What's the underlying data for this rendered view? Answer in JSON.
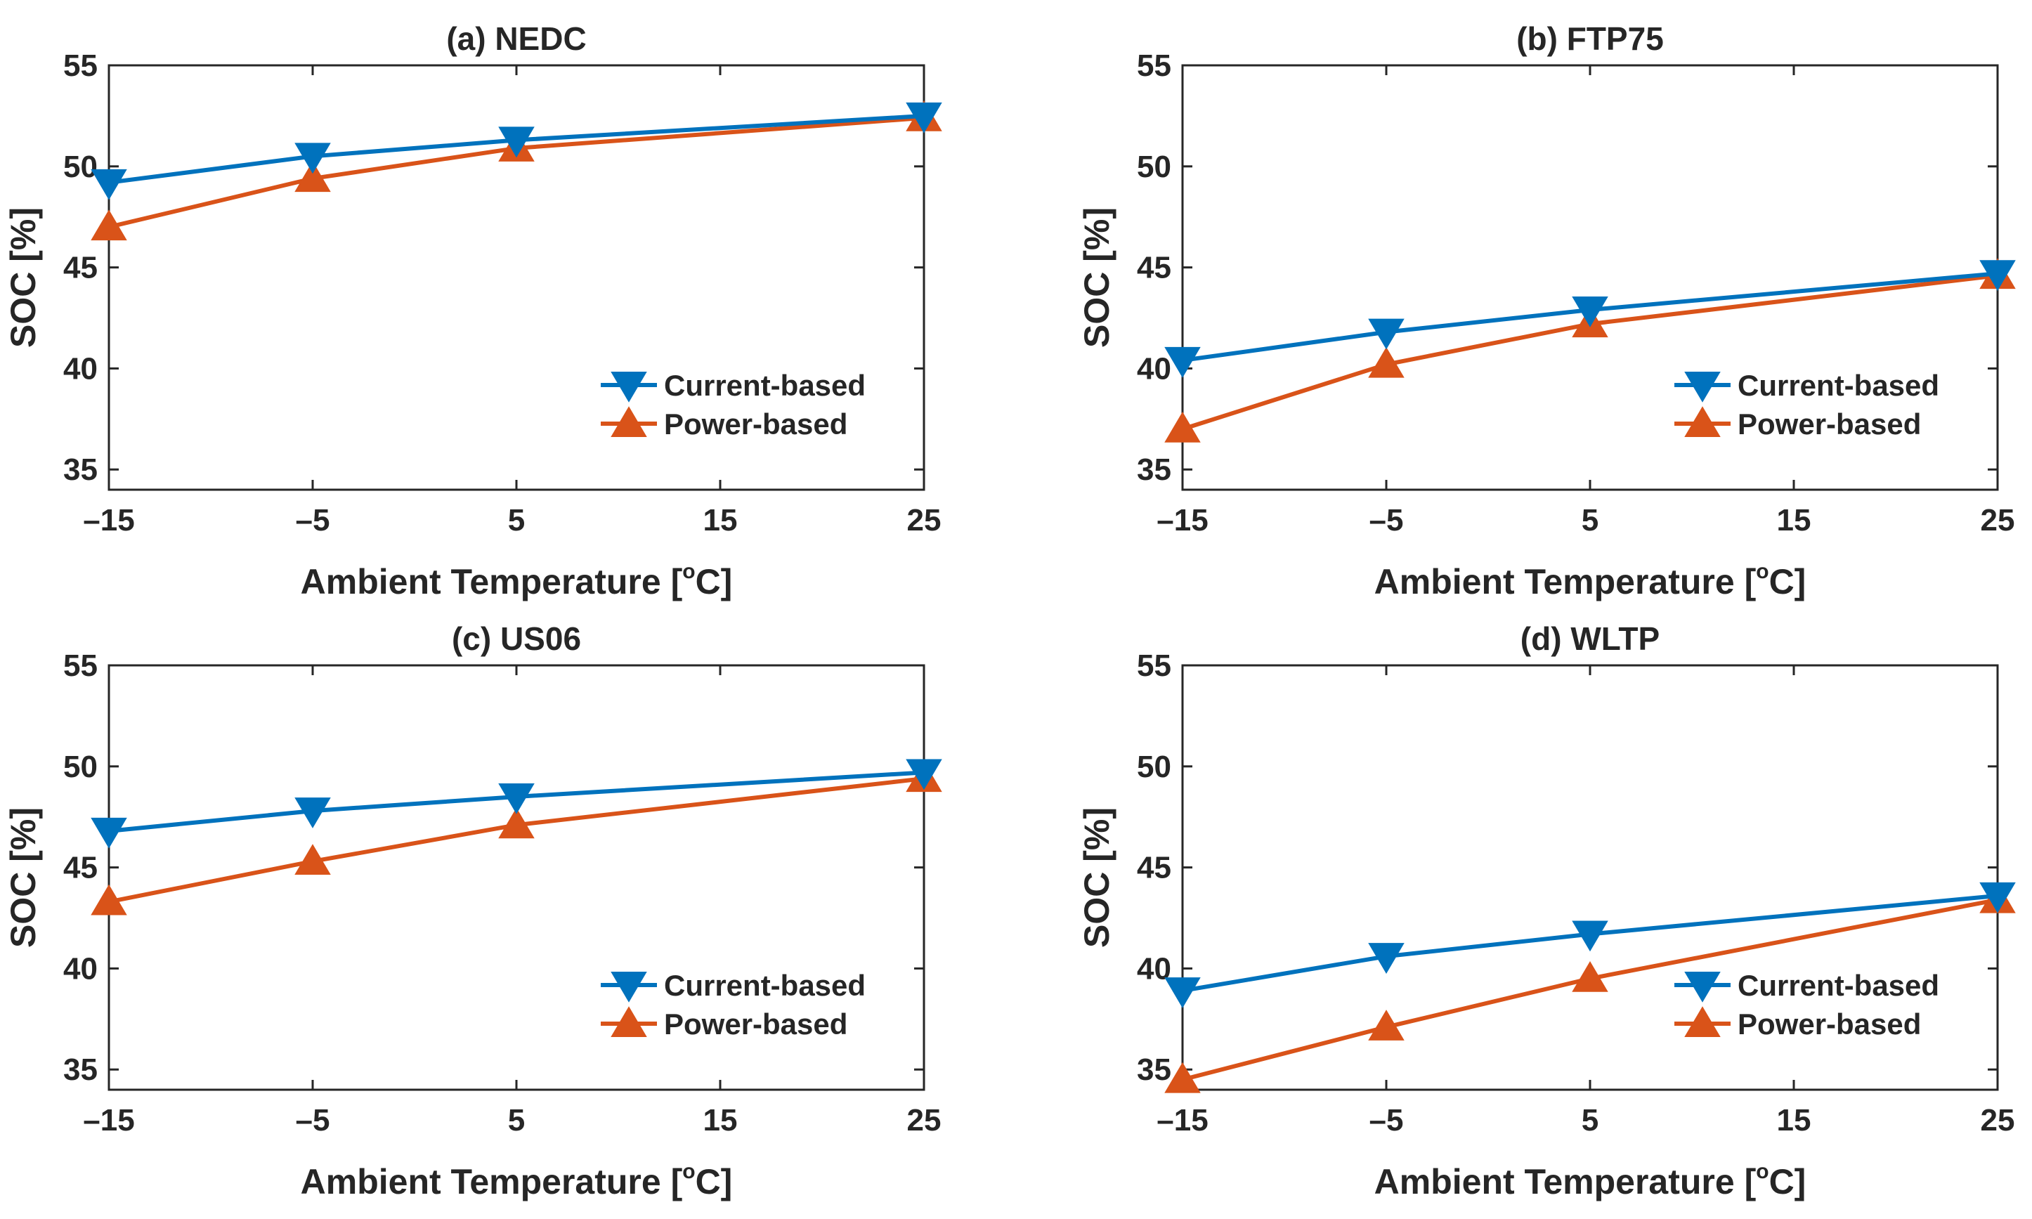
{
  "colors": {
    "current": "#0072BD",
    "power": "#D95319",
    "axis": "#262626"
  },
  "legend": {
    "current_label": "Current-based",
    "power_label": "Power-based"
  },
  "chart_data": [
    {
      "type": "line",
      "title": "(a) NEDC",
      "xlabel": "Ambient Temperature [",
      "xlabel_sup": "o",
      "xlabel_end": "C]",
      "ylabel": "SOC [%]",
      "x": [
        -15,
        -5,
        5,
        25
      ],
      "xticks": [
        "–15",
        "–5",
        "5",
        "15",
        "25"
      ],
      "yticks": [
        "35",
        "40",
        "45",
        "50",
        "55"
      ],
      "xlim": [
        -15,
        25
      ],
      "ylim": [
        34,
        55
      ],
      "series": [
        {
          "name": "Current-based",
          "values": [
            49.2,
            50.5,
            51.3,
            52.5
          ]
        },
        {
          "name": "Power-based",
          "values": [
            47.0,
            49.4,
            50.9,
            52.4
          ]
        }
      ]
    },
    {
      "type": "line",
      "title": "(b) FTP75",
      "xlabel": "Ambient Temperature [",
      "xlabel_sup": "o",
      "xlabel_end": "C]",
      "ylabel": "SOC [%]",
      "x": [
        -15,
        -5,
        5,
        25
      ],
      "xticks": [
        "–15",
        "–5",
        "5",
        "15",
        "25"
      ],
      "yticks": [
        "35",
        "40",
        "45",
        "50",
        "55"
      ],
      "xlim": [
        -15,
        25
      ],
      "ylim": [
        34,
        55
      ],
      "series": [
        {
          "name": "Current-based",
          "values": [
            40.4,
            41.8,
            42.9,
            44.7
          ]
        },
        {
          "name": "Power-based",
          "values": [
            37.0,
            40.2,
            42.2,
            44.6
          ]
        }
      ]
    },
    {
      "type": "line",
      "title": "(c) US06",
      "xlabel": "Ambient Temperature [",
      "xlabel_sup": "o",
      "xlabel_end": "C]",
      "ylabel": "SOC [%]",
      "x": [
        -15,
        -5,
        5,
        25
      ],
      "xticks": [
        "–15",
        "–5",
        "5",
        "15",
        "25"
      ],
      "yticks": [
        "35",
        "40",
        "45",
        "50",
        "55"
      ],
      "xlim": [
        -15,
        25
      ],
      "ylim": [
        34,
        55
      ],
      "series": [
        {
          "name": "Current-based",
          "values": [
            46.8,
            47.8,
            48.5,
            49.7
          ]
        },
        {
          "name": "Power-based",
          "values": [
            43.3,
            45.3,
            47.1,
            49.4
          ]
        }
      ]
    },
    {
      "type": "line",
      "title": "(d) WLTP",
      "xlabel": "Ambient Temperature [",
      "xlabel_sup": "o",
      "xlabel_end": "C]",
      "ylabel": "SOC [%]",
      "x": [
        -15,
        -5,
        5,
        25
      ],
      "xticks": [
        "–15",
        "–5",
        "5",
        "15",
        "25"
      ],
      "yticks": [
        "35",
        "40",
        "45",
        "50",
        "55"
      ],
      "xlim": [
        -15,
        25
      ],
      "ylim": [
        34,
        55
      ],
      "series": [
        {
          "name": "Current-based",
          "values": [
            38.9,
            40.6,
            41.7,
            43.6
          ]
        },
        {
          "name": "Power-based",
          "values": [
            34.5,
            37.1,
            39.5,
            43.4
          ]
        }
      ]
    }
  ]
}
